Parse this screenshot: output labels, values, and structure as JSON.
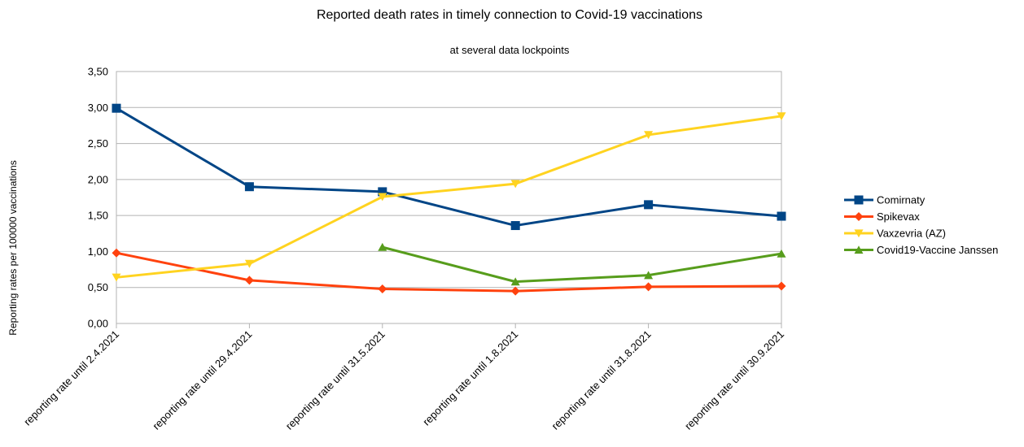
{
  "chart_data": {
    "type": "line",
    "title": "Reported death rates in timely connection to Covid-19 vaccinations",
    "subtitle": "at several data lockpoints",
    "xlabel": "",
    "ylabel": "Reporting rates per 100000 vaccinations",
    "ylim": [
      0,
      3.5
    ],
    "yticks": [
      "0,00",
      "0,50",
      "1,00",
      "1,50",
      "2,00",
      "2,50",
      "3,00",
      "3,50"
    ],
    "grid": true,
    "legend_position": "right",
    "categories": [
      "reporting rate until 2.4.2021",
      "reporting rate until 29.4.2021",
      "reporting rate until 31.5.2021",
      "reporting rate until 1.8.2021",
      "reporting rate until 31.8.2021",
      "reporting rate until 30.9.2021"
    ],
    "series": [
      {
        "name": "Comirnaty",
        "color": "#004586",
        "marker": "square",
        "values": [
          2.99,
          1.9,
          1.83,
          1.36,
          1.65,
          1.49
        ]
      },
      {
        "name": "Spikevax",
        "color": "#ff420e",
        "marker": "diamond",
        "values": [
          0.98,
          0.6,
          0.48,
          0.45,
          0.51,
          0.52
        ]
      },
      {
        "name": "Vaxzevria (AZ)",
        "color": "#ffd320",
        "marker": "triangle-down",
        "values": [
          0.64,
          0.83,
          1.76,
          1.94,
          2.62,
          2.88
        ]
      },
      {
        "name": "Covid19-Vaccine Janssen",
        "color": "#579d1c",
        "marker": "triangle-up",
        "values": [
          null,
          null,
          1.06,
          0.58,
          0.67,
          0.97
        ]
      }
    ]
  }
}
